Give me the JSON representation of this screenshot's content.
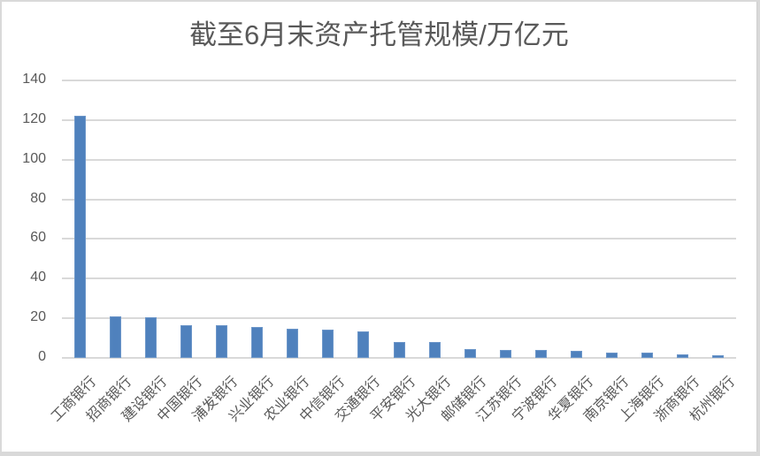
{
  "chart_data": {
    "type": "bar",
    "title": "截至6月末资产托管规模/万亿元",
    "xlabel": "",
    "ylabel": "",
    "ylim": [
      0,
      140
    ],
    "yticks": [
      0,
      20,
      40,
      60,
      80,
      100,
      120,
      140
    ],
    "grid": true,
    "legend": null,
    "bar_color": "#4f81bd",
    "categories": [
      "工商银行",
      "招商银行",
      "建设银行",
      "中国银行",
      "浦发银行",
      "兴业银行",
      "农业银行",
      "中信银行",
      "交通银行",
      "平安银行",
      "光大银行",
      "邮储银行",
      "江苏银行",
      "宁波银行",
      "华夏银行",
      "南京银行",
      "上海银行",
      "浙商银行",
      "杭州银行"
    ],
    "values": [
      122,
      21,
      20.3,
      16.3,
      16.3,
      15.6,
      14.7,
      14.3,
      13.4,
      8.2,
      8.2,
      4.5,
      4.0,
      4.0,
      3.5,
      2.5,
      2.5,
      2.0,
      1.3
    ]
  },
  "chart": {
    "title": "截至6月末资产托管规模/万亿元",
    "yticks": [
      "0",
      "20",
      "40",
      "60",
      "80",
      "100",
      "120",
      "140"
    ]
  }
}
